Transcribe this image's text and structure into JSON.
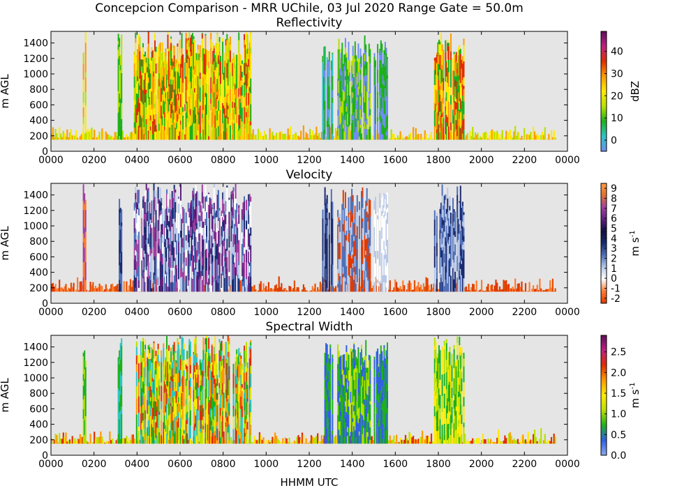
{
  "figure": {
    "suptitle": "Concepcion Comparison - MRR UChile, 03 Jul 2020 Range Gate = 50.0m",
    "xlabel": "HHMM UTC"
  },
  "chart_data": [
    {
      "type": "heatmap",
      "title": "Reflectivity",
      "ylabel": "m AGL",
      "xlabel": "HHMM UTC",
      "x_ticks": [
        "0000",
        "0200",
        "0400",
        "0600",
        "0800",
        "1000",
        "1200",
        "1400",
        "1600",
        "1800",
        "2000",
        "2200",
        "0000"
      ],
      "y_ticks": [
        0,
        200,
        400,
        600,
        800,
        1000,
        1200,
        1400
      ],
      "xlim_hours": [
        0,
        24
      ],
      "ylim": [
        0,
        1550
      ],
      "colorbar": {
        "label": "dBZ",
        "range": [
          -5,
          49
        ],
        "ticks": [
          "0",
          "10",
          "20",
          "30",
          "40"
        ],
        "tick_values": [
          0,
          10,
          20,
          30,
          40
        ],
        "stops": [
          "#6e8ef0",
          "#2ec4c4",
          "#1db01d",
          "#b8e000",
          "#ffea00",
          "#ff9a00",
          "#e02d00",
          "#c02080",
          "#5c0f5c"
        ]
      },
      "background": "#e5e5e5",
      "events": [
        {
          "start": 1.48,
          "end": 1.62,
          "top": 1550,
          "palette": [
            "#ffea00",
            "#b8e000",
            "#ff9a00"
          ]
        },
        {
          "start": 3.1,
          "end": 3.25,
          "top": 1550,
          "palette": [
            "#1db01d",
            "#b8e000"
          ]
        },
        {
          "start": 3.85,
          "end": 9.3,
          "top": 1550,
          "palette": [
            "#ffea00",
            "#b8e000",
            "#1db01d",
            "#ff9a00",
            "#e02d00",
            "#ffd000"
          ]
        },
        {
          "start": 12.6,
          "end": 13.1,
          "top": 1500,
          "palette": [
            "#1db01d",
            "#6e8ef0",
            "#2ec4c4"
          ]
        },
        {
          "start": 13.3,
          "end": 14.85,
          "top": 1500,
          "palette": [
            "#1db01d",
            "#b8e000",
            "#6e8ef0"
          ]
        },
        {
          "start": 15.0,
          "end": 15.65,
          "top": 1500,
          "palette": [
            "#1db01d",
            "#6e8ef0"
          ]
        },
        {
          "start": 17.8,
          "end": 19.2,
          "top": 1550,
          "palette": [
            "#ffea00",
            "#e02d00",
            "#ff9a00",
            "#1db01d"
          ]
        }
      ],
      "surface_band": {
        "from": 150,
        "to": 350,
        "palette": [
          "#ffea00",
          "#b8e000",
          "#ff9a00"
        ]
      }
    },
    {
      "type": "heatmap",
      "title": "Velocity",
      "ylabel": "m AGL",
      "xlabel": "HHMM UTC",
      "x_ticks": [
        "0000",
        "0200",
        "0400",
        "0600",
        "0800",
        "1000",
        "1200",
        "1400",
        "1600",
        "1800",
        "2000",
        "2200",
        "0000"
      ],
      "y_ticks": [
        0,
        200,
        400,
        600,
        800,
        1000,
        1200,
        1400
      ],
      "xlim_hours": [
        0,
        24
      ],
      "ylim": [
        0,
        1550
      ],
      "colorbar": {
        "label": "m s",
        "label_sup": "-1",
        "range": [
          -2.5,
          9.5
        ],
        "ticks": [
          "-2",
          "-1",
          "0",
          "1",
          "2",
          "3",
          "4",
          "5",
          "6",
          "7",
          "8",
          "9"
        ],
        "tick_values": [
          -2,
          -1,
          0,
          1,
          2,
          3,
          4,
          5,
          6,
          7,
          8,
          9
        ],
        "stops": [
          "#e03a00",
          "#ff7a30",
          "#ffffff",
          "#b8c8e8",
          "#5070b8",
          "#1a2a70",
          "#101040",
          "#602080",
          "#a040a0",
          "#e07030",
          "#ff9a40"
        ]
      },
      "background": "#e5e5e5",
      "events": [
        {
          "start": 1.48,
          "end": 1.62,
          "top": 1550,
          "palette": [
            "#ff7a30",
            "#a040a0"
          ]
        },
        {
          "start": 3.1,
          "end": 3.25,
          "top": 1550,
          "palette": [
            "#1a2a70",
            "#5070b8"
          ]
        },
        {
          "start": 3.85,
          "end": 9.3,
          "top": 1550,
          "palette": [
            "#1a2a70",
            "#5070b8",
            "#b8c8e8",
            "#a040a0",
            "#602080",
            "#ffffff"
          ]
        },
        {
          "start": 12.6,
          "end": 13.1,
          "top": 1500,
          "palette": [
            "#1a2a70",
            "#5070b8"
          ]
        },
        {
          "start": 13.3,
          "end": 14.85,
          "top": 1500,
          "palette": [
            "#5070b8",
            "#b8c8e8",
            "#e03a00"
          ]
        },
        {
          "start": 15.0,
          "end": 15.65,
          "top": 1500,
          "palette": [
            "#b8c8e8",
            "#ffffff"
          ]
        },
        {
          "start": 17.8,
          "end": 19.2,
          "top": 1550,
          "palette": [
            "#1a2a70",
            "#5070b8",
            "#b8c8e8"
          ]
        }
      ],
      "surface_band": {
        "from": 150,
        "to": 350,
        "palette": [
          "#e03a00",
          "#ff7a30",
          "#e05000"
        ]
      }
    },
    {
      "type": "heatmap",
      "title": "Spectral Width",
      "ylabel": "m AGL",
      "xlabel": "HHMM UTC",
      "x_ticks": [
        "0000",
        "0200",
        "0400",
        "0600",
        "0800",
        "1000",
        "1200",
        "1400",
        "1600",
        "1800",
        "2000",
        "2200",
        "0000"
      ],
      "y_ticks": [
        0,
        200,
        400,
        600,
        800,
        1000,
        1200,
        1400
      ],
      "xlim_hours": [
        0,
        24
      ],
      "ylim": [
        0,
        1550
      ],
      "colorbar": {
        "label": "m s",
        "label_sup": "-1",
        "range": [
          0,
          2.9
        ],
        "ticks": [
          "0.0",
          "0.5",
          "1.0",
          "1.5",
          "2.0",
          "2.5"
        ],
        "tick_values": [
          0,
          0.5,
          1,
          1.5,
          2,
          2.5
        ],
        "stops": [
          "#8aa8f0",
          "#3060e0",
          "#1db01d",
          "#b8e000",
          "#ffea00",
          "#ff9a00",
          "#e02d00",
          "#c02080",
          "#5c0f5c"
        ]
      },
      "background": "#e5e5e5",
      "events": [
        {
          "start": 1.48,
          "end": 1.62,
          "top": 1550,
          "palette": [
            "#1db01d",
            "#b8e000"
          ]
        },
        {
          "start": 3.1,
          "end": 3.25,
          "top": 1550,
          "palette": [
            "#1db01d",
            "#2ec4c4"
          ]
        },
        {
          "start": 3.85,
          "end": 9.3,
          "top": 1550,
          "palette": [
            "#1db01d",
            "#b8e000",
            "#ffea00",
            "#2ec4c4",
            "#ff9a00",
            "#e02d00"
          ]
        },
        {
          "start": 12.6,
          "end": 13.1,
          "top": 1500,
          "palette": [
            "#1db01d",
            "#3060e0"
          ]
        },
        {
          "start": 13.3,
          "end": 14.85,
          "top": 1500,
          "palette": [
            "#1db01d",
            "#3060e0",
            "#b8e000"
          ]
        },
        {
          "start": 15.0,
          "end": 15.65,
          "top": 1500,
          "palette": [
            "#3060e0",
            "#1db01d"
          ]
        },
        {
          "start": 17.8,
          "end": 19.2,
          "top": 1550,
          "palette": [
            "#1db01d",
            "#b8e000",
            "#ffea00"
          ]
        }
      ],
      "surface_band": {
        "from": 150,
        "to": 350,
        "palette": [
          "#ffea00",
          "#ff9a00",
          "#e02d00",
          "#b8e000"
        ]
      }
    }
  ]
}
